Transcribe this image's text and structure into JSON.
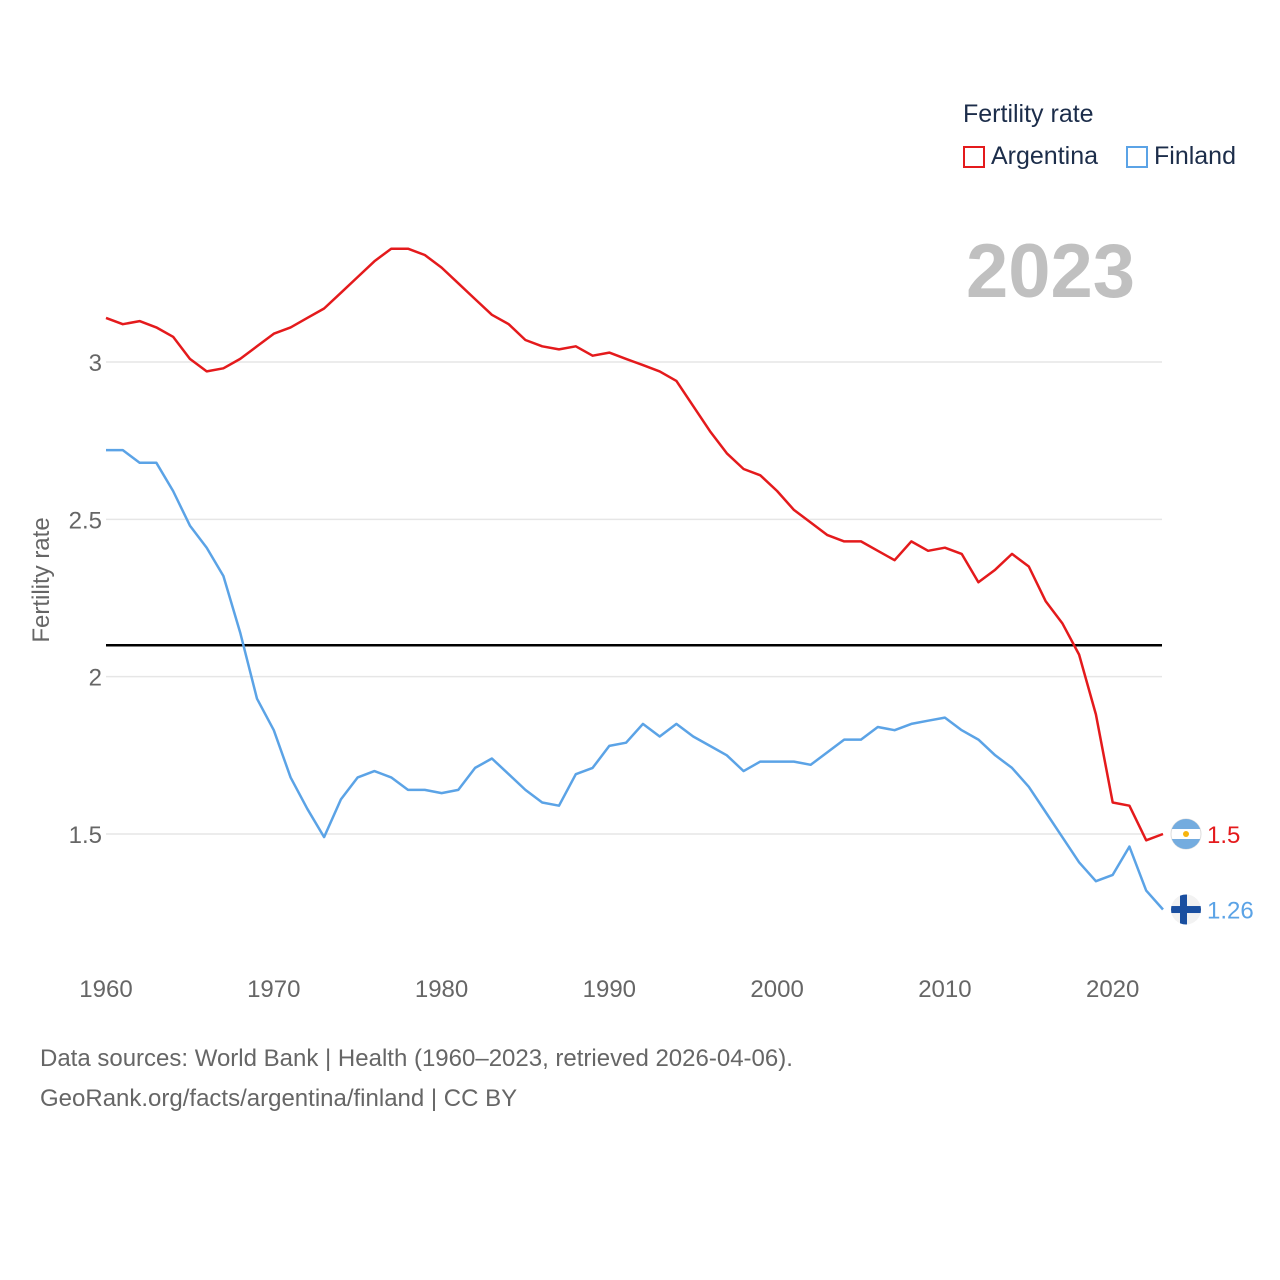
{
  "legend": {
    "title": "Fertility rate",
    "items": [
      {
        "name": "Argentina",
        "color": "#e41a1c"
      },
      {
        "name": "Finland",
        "color": "#5ba3e6"
      }
    ]
  },
  "year_label": "2023",
  "footer": {
    "line1": "Data sources: World Bank | Health (1960–2023, retrieved 2026-04-06).",
    "line2": "GeoRank.org/facts/argentina/finland | CC BY"
  },
  "chart_data": {
    "type": "line",
    "title": "Fertility rate",
    "ylabel": "Fertility rate",
    "xlabel": "",
    "xlim": [
      1960,
      2023
    ],
    "ylim": [
      1.1,
      3.5
    ],
    "x_ticks": [
      1960,
      1970,
      1980,
      1990,
      2000,
      2010,
      2020
    ],
    "y_ticks": [
      1.5,
      2,
      2.5,
      3
    ],
    "y_tick_labels": [
      "1.5",
      "2",
      "2.5",
      "3"
    ],
    "reference_line": 2.1,
    "x": [
      1960,
      1961,
      1962,
      1963,
      1964,
      1965,
      1966,
      1967,
      1968,
      1969,
      1970,
      1971,
      1972,
      1973,
      1974,
      1975,
      1976,
      1977,
      1978,
      1979,
      1980,
      1981,
      1982,
      1983,
      1984,
      1985,
      1986,
      1987,
      1988,
      1989,
      1990,
      1991,
      1992,
      1993,
      1994,
      1995,
      1996,
      1997,
      1998,
      1999,
      2000,
      2001,
      2002,
      2003,
      2004,
      2005,
      2006,
      2007,
      2008,
      2009,
      2010,
      2011,
      2012,
      2013,
      2014,
      2015,
      2016,
      2017,
      2018,
      2019,
      2020,
      2021,
      2022,
      2023
    ],
    "series": [
      {
        "name": "Argentina",
        "color": "#e41a1c",
        "end_label": "1.5",
        "values": [
          3.14,
          3.12,
          3.13,
          3.11,
          3.08,
          3.01,
          2.97,
          2.98,
          3.01,
          3.05,
          3.09,
          3.11,
          3.14,
          3.17,
          3.22,
          3.27,
          3.32,
          3.36,
          3.36,
          3.34,
          3.3,
          3.25,
          3.2,
          3.15,
          3.12,
          3.07,
          3.05,
          3.04,
          3.05,
          3.02,
          3.03,
          3.01,
          2.99,
          2.97,
          2.94,
          2.86,
          2.78,
          2.71,
          2.66,
          2.64,
          2.59,
          2.53,
          2.49,
          2.45,
          2.43,
          2.43,
          2.4,
          2.37,
          2.43,
          2.4,
          2.41,
          2.39,
          2.3,
          2.34,
          2.39,
          2.35,
          2.24,
          2.17,
          2.07,
          1.88,
          1.6,
          1.59,
          1.48,
          1.5
        ]
      },
      {
        "name": "Finland",
        "color": "#5ba3e6",
        "end_label": "1.26",
        "values": [
          2.72,
          2.72,
          2.68,
          2.68,
          2.59,
          2.48,
          2.41,
          2.32,
          2.14,
          1.93,
          1.83,
          1.68,
          1.58,
          1.49,
          1.61,
          1.68,
          1.7,
          1.68,
          1.64,
          1.64,
          1.63,
          1.64,
          1.71,
          1.74,
          1.69,
          1.64,
          1.6,
          1.59,
          1.69,
          1.71,
          1.78,
          1.79,
          1.85,
          1.81,
          1.85,
          1.81,
          1.78,
          1.75,
          1.7,
          1.73,
          1.73,
          1.73,
          1.72,
          1.76,
          1.8,
          1.8,
          1.84,
          1.83,
          1.85,
          1.86,
          1.87,
          1.83,
          1.8,
          1.75,
          1.71,
          1.65,
          1.57,
          1.49,
          1.41,
          1.35,
          1.37,
          1.46,
          1.32,
          1.26
        ]
      }
    ]
  }
}
